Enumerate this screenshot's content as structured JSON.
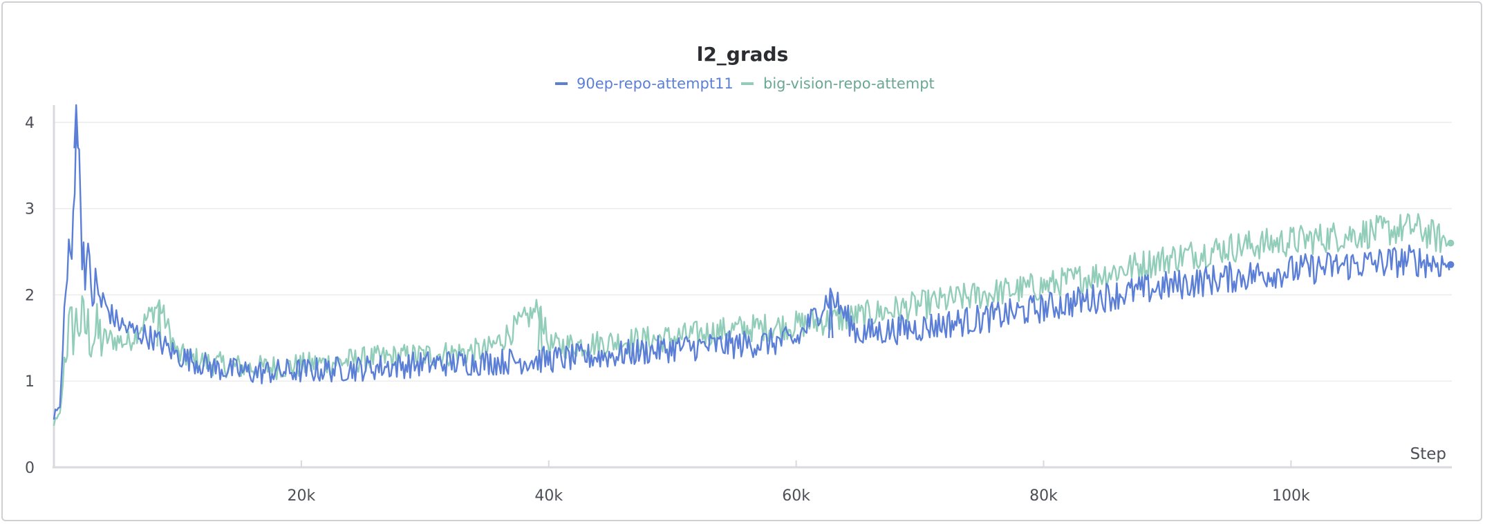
{
  "chart_data": {
    "type": "line",
    "title": "l2_grads",
    "xlabel": "Step",
    "ylabel": "",
    "xlim": [
      0,
      113000
    ],
    "ylim": [
      0,
      4.2
    ],
    "x_ticks": [
      20000,
      40000,
      60000,
      80000,
      100000
    ],
    "x_tick_labels": [
      "20k",
      "40k",
      "60k",
      "80k",
      "100k"
    ],
    "y_ticks": [
      0,
      1,
      2,
      3,
      4
    ],
    "y_tick_labels": [
      "0",
      "1",
      "2",
      "3",
      "4"
    ],
    "grid": true,
    "legend_position": "top-center",
    "series": [
      {
        "name": "90ep-repo-attempt11",
        "color": "#5b7fd6",
        "x": [
          0,
          500,
          1000,
          1500,
          1800,
          2300,
          3000,
          4000,
          5000,
          6000,
          8000,
          10000,
          13000,
          16000,
          20000,
          25000,
          30000,
          35000,
          40000,
          45000,
          50000,
          55000,
          60000,
          62800,
          65000,
          70000,
          75000,
          80000,
          85000,
          90000,
          95000,
          100000,
          105000,
          110000,
          112800
        ],
        "y": [
          0.6,
          0.7,
          2.2,
          2.5,
          4.2,
          2.6,
          2.1,
          1.9,
          1.7,
          1.6,
          1.5,
          1.3,
          1.15,
          1.1,
          1.12,
          1.15,
          1.2,
          1.22,
          1.25,
          1.3,
          1.38,
          1.42,
          1.47,
          2.0,
          1.55,
          1.62,
          1.72,
          1.85,
          1.98,
          2.1,
          2.2,
          2.28,
          2.35,
          2.4,
          2.35
        ]
      },
      {
        "name": "big-vision-repo-attempt",
        "color": "#92cdb9",
        "x": [
          0,
          500,
          1000,
          1500,
          2000,
          3000,
          4000,
          6000,
          8500,
          10000,
          13000,
          16000,
          20000,
          25000,
          30000,
          35000,
          39300,
          40000,
          45000,
          50000,
          55000,
          60000,
          65000,
          70000,
          75000,
          80000,
          85000,
          90000,
          95000,
          100000,
          105000,
          110000,
          112800
        ],
        "y": [
          0.5,
          0.6,
          1.5,
          1.6,
          1.7,
          1.55,
          1.5,
          1.45,
          1.9,
          1.3,
          1.2,
          1.15,
          1.18,
          1.25,
          1.3,
          1.35,
          1.85,
          1.4,
          1.45,
          1.5,
          1.6,
          1.65,
          1.75,
          1.88,
          2.0,
          2.1,
          2.25,
          2.42,
          2.55,
          2.62,
          2.7,
          2.78,
          2.6
        ]
      }
    ]
  }
}
